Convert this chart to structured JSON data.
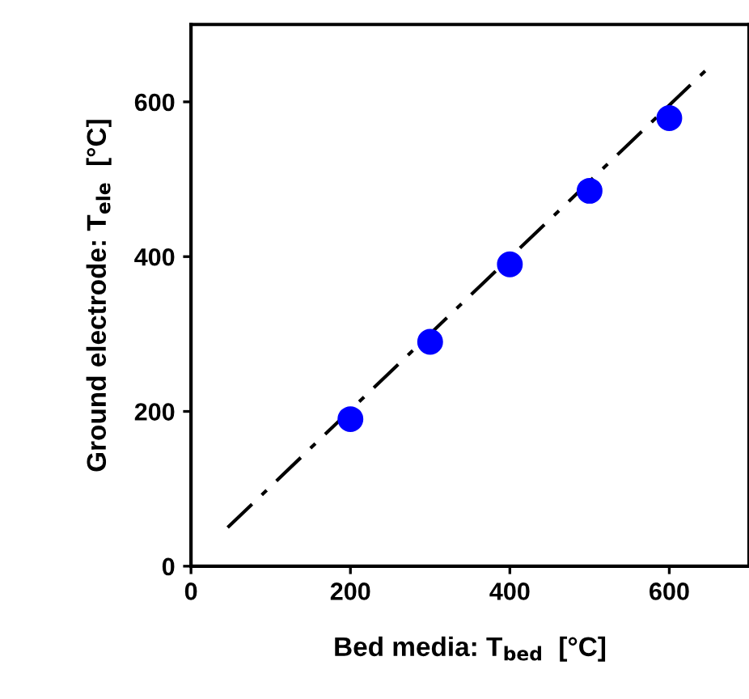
{
  "chart_data": {
    "type": "scatter",
    "xlabel": "Bed media: T$_{bed}$  [°C]",
    "ylabel": "Ground electrode: T$_{ele}$  [°C]",
    "xlim": [
      0,
      700
    ],
    "ylim": [
      0,
      700
    ],
    "xticks": [
      0,
      200,
      400,
      600
    ],
    "yticks": [
      0,
      200,
      400,
      600
    ],
    "grid": false,
    "legend": false,
    "marker": "circle",
    "series": [
      {
        "color": "#0000ff",
        "x": [
          200,
          300,
          400,
          500,
          600
        ],
        "values": [
          190,
          290,
          390,
          485,
          579
        ]
      },
      {
        "type": "line",
        "color": "#000000",
        "x": [
          46,
          646
        ],
        "values": [
          50,
          641
        ],
        "line_style": "dashdot",
        "marker": "none"
      }
    ]
  }
}
